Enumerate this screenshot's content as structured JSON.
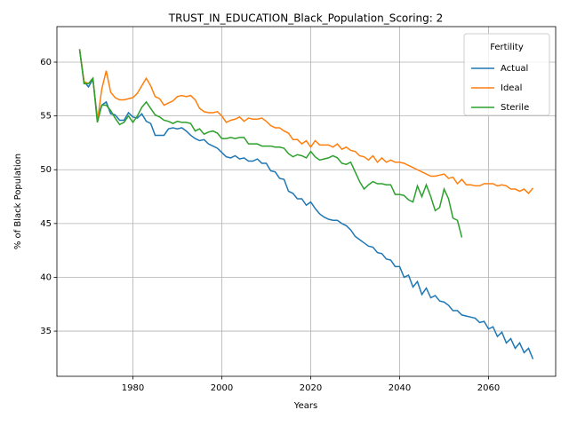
{
  "chart_data": {
    "type": "line",
    "title": "TRUST_IN_EDUCATION_Black_Population_Scoring: 2",
    "xlabel": "Years",
    "ylabel": "% of Black Population",
    "legend_title": "Fertility",
    "legend": "upper right",
    "grid": true,
    "x": [
      1968,
      1969,
      1970,
      1971,
      1972,
      1973,
      1974,
      1975,
      1976,
      1977,
      1978,
      1979,
      1980,
      1981,
      1982,
      1983,
      1984,
      1985,
      1986,
      1987,
      1988,
      1989,
      1990,
      1991,
      1992,
      1993,
      1994,
      1995,
      1996,
      1997,
      1998,
      1999,
      2000,
      2001,
      2002,
      2003,
      2004,
      2005,
      2006,
      2007,
      2008,
      2009,
      2010,
      2011,
      2012,
      2013,
      2014,
      2015,
      2016,
      2017,
      2018,
      2019,
      2020,
      2021,
      2022,
      2023,
      2024,
      2025,
      2026,
      2027,
      2028,
      2029,
      2030,
      2031,
      2032,
      2033,
      2034,
      2035,
      2036,
      2037,
      2038,
      2039,
      2040,
      2041,
      2042,
      2043,
      2044,
      2045,
      2046,
      2047,
      2048,
      2049,
      2050,
      2051,
      2052,
      2053,
      2054,
      2055,
      2056,
      2057,
      2058,
      2059,
      2060,
      2061,
      2062,
      2063,
      2064,
      2065,
      2066,
      2067,
      2068,
      2069,
      2070
    ],
    "series": [
      {
        "name": "Actual",
        "color": "#1f77b4",
        "values": [
          61.2,
          58.2,
          57.7,
          58.4,
          54.8,
          56.0,
          56.3,
          55.2,
          55.1,
          54.6,
          54.6,
          55.3,
          54.9,
          54.8,
          55.2,
          54.5,
          54.3,
          53.2,
          53.2,
          53.2,
          53.8,
          53.9,
          53.8,
          53.9,
          53.6,
          53.2,
          52.9,
          52.7,
          52.8,
          52.4,
          52.2,
          52.0,
          51.6,
          51.2,
          51.1,
          51.3,
          51.0,
          51.1,
          50.8,
          50.8,
          51.0,
          50.6,
          50.6,
          49.9,
          49.8,
          49.2,
          49.1,
          48.0,
          47.8,
          47.3,
          47.3,
          46.7,
          47.0,
          46.4,
          45.9,
          45.6,
          45.4,
          45.3,
          45.3,
          45.0,
          44.8,
          44.4,
          43.8,
          43.5,
          43.2,
          42.9,
          42.8,
          42.3,
          42.2,
          41.7,
          41.6,
          41.0,
          41.0,
          40.0,
          40.2,
          39.1,
          39.6,
          38.4,
          39.0,
          38.1,
          38.3,
          37.8,
          37.7,
          37.4,
          36.9,
          36.9,
          36.5,
          36.4,
          36.3,
          36.2,
          35.8,
          35.9,
          35.2,
          35.4,
          34.5,
          34.9,
          33.9,
          34.3,
          33.4,
          33.9,
          33.0,
          33.4,
          32.4
        ]
      },
      {
        "name": "Ideal",
        "color": "#ff7f0e",
        "values": [
          61.2,
          58.2,
          58.0,
          58.5,
          54.5,
          57.5,
          59.2,
          57.2,
          56.7,
          56.5,
          56.5,
          56.6,
          56.7,
          57.1,
          57.8,
          58.5,
          57.8,
          56.8,
          56.6,
          56.0,
          56.2,
          56.4,
          56.8,
          56.9,
          56.8,
          56.9,
          56.5,
          55.7,
          55.4,
          55.3,
          55.3,
          55.4,
          55.0,
          54.4,
          54.6,
          54.7,
          54.9,
          54.5,
          54.8,
          54.7,
          54.7,
          54.8,
          54.5,
          54.1,
          53.9,
          53.9,
          53.6,
          53.4,
          52.8,
          52.8,
          52.4,
          52.7,
          52.1,
          52.7,
          52.3,
          52.3,
          52.3,
          52.1,
          52.4,
          51.9,
          52.1,
          51.8,
          51.7,
          51.3,
          51.2,
          50.9,
          51.3,
          50.7,
          51.1,
          50.7,
          50.9,
          50.7,
          50.7,
          50.6,
          50.4,
          50.2,
          50.0,
          49.8,
          49.6,
          49.4,
          49.4,
          49.5,
          49.6,
          49.2,
          49.3,
          48.7,
          49.1,
          48.6,
          48.6,
          48.5,
          48.5,
          48.7,
          48.7,
          48.7,
          48.5,
          48.6,
          48.5,
          48.2,
          48.2,
          48.0,
          48.2,
          47.8,
          48.3
        ]
      },
      {
        "name": "Sterile",
        "color": "#2ca02c",
        "values": [
          61.2,
          58.0,
          58.0,
          58.5,
          54.4,
          56.0,
          56.0,
          55.5,
          54.8,
          54.2,
          54.4,
          55.0,
          54.4,
          55.0,
          55.8,
          56.3,
          55.7,
          55.1,
          54.9,
          54.6,
          54.5,
          54.3,
          54.5,
          54.4,
          54.4,
          54.3,
          53.6,
          53.8,
          53.3,
          53.5,
          53.6,
          53.4,
          52.9,
          52.9,
          53.0,
          52.9,
          53.0,
          53.0,
          52.4,
          52.4,
          52.4,
          52.2,
          52.2,
          52.2,
          52.1,
          52.1,
          52.0,
          51.5,
          51.2,
          51.4,
          51.3,
          51.1,
          51.7,
          51.2,
          50.9,
          51.0,
          51.1,
          51.3,
          51.1,
          50.6,
          50.5,
          50.7,
          49.8,
          48.9,
          48.2,
          48.6,
          48.9,
          48.7,
          48.7,
          48.6,
          48.6,
          47.7,
          47.7,
          47.6,
          47.2,
          47.0,
          48.5,
          47.5,
          48.6,
          47.5,
          46.2,
          46.5,
          48.2,
          47.3,
          45.5,
          45.3,
          43.7,
          null,
          null,
          null,
          null,
          null,
          null,
          null,
          null,
          null,
          null,
          null,
          null,
          null,
          null,
          null,
          null
        ]
      }
    ],
    "xlim": [
      1962.9,
      2075.1
    ],
    "ylim": [
      30.8,
      63.3
    ],
    "xticks": [
      1980,
      2000,
      2020,
      2040,
      2060
    ],
    "yticks": [
      35,
      40,
      45,
      50,
      55,
      60
    ]
  }
}
